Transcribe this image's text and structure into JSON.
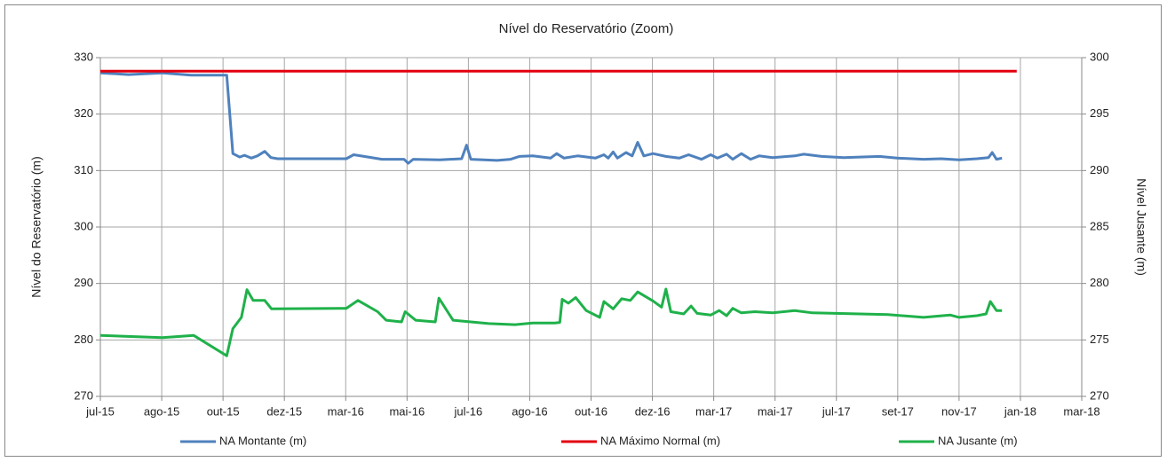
{
  "chart_data": {
    "type": "line",
    "title": "Nível do Reservatório (Zoom)",
    "y_label": "Nível do Reservatório (m)",
    "y2_label": "Nível Jusante (m)",
    "xlim": [
      0,
      16
    ],
    "xticks": [
      {
        "value": 0,
        "label": "jul-15"
      },
      {
        "value": 1,
        "label": "ago-15"
      },
      {
        "value": 2,
        "label": "out-15"
      },
      {
        "value": 3,
        "label": "dez-15"
      },
      {
        "value": 4,
        "label": "mar-16"
      },
      {
        "value": 5,
        "label": "mai-16"
      },
      {
        "value": 6,
        "label": "jul-16"
      },
      {
        "value": 7,
        "label": "ago-16"
      },
      {
        "value": 8,
        "label": "out-16"
      },
      {
        "value": 9,
        "label": "dez-16"
      },
      {
        "value": 10,
        "label": "mar-17"
      },
      {
        "value": 11,
        "label": "mai-17"
      },
      {
        "value": 12,
        "label": "jul-17"
      },
      {
        "value": 13,
        "label": "set-17"
      },
      {
        "value": 14,
        "label": "nov-17"
      },
      {
        "value": 15,
        "label": "jan-18"
      },
      {
        "value": 16,
        "label": "mar-18"
      }
    ],
    "ylim": [
      270,
      330
    ],
    "yticks": [
      270,
      280,
      290,
      300,
      310,
      320,
      330
    ],
    "y2lim": [
      270,
      300
    ],
    "y2ticks": [
      270,
      275,
      280,
      285,
      290,
      295,
      300
    ],
    "grid": true,
    "legend": "bottom",
    "series": [
      {
        "name": "NA Montante (m)",
        "color": "#4f81bd",
        "x": [
          0,
          0.46,
          1.01,
          1.48,
          2.06,
          2.16,
          2.27,
          2.35,
          2.46,
          2.56,
          2.68,
          2.78,
          2.89,
          4.01,
          4.13,
          4.3,
          4.59,
          4.95,
          5.02,
          5.1,
          5.53,
          5.89,
          5.97,
          6.04,
          6.47,
          6.69,
          6.83,
          7.05,
          7.34,
          7.44,
          7.56,
          7.78,
          8.07,
          8.21,
          8.28,
          8.36,
          8.43,
          8.57,
          8.67,
          8.76,
          8.86,
          9.01,
          9.22,
          9.44,
          9.59,
          9.8,
          9.95,
          10.06,
          10.21,
          10.31,
          10.45,
          10.6,
          10.74,
          10.96,
          11.32,
          11.47,
          11.76,
          12.12,
          12.7,
          12.99,
          13.42,
          13.71,
          14.0,
          14.29,
          14.48,
          14.54,
          14.61,
          14.7
        ],
        "values": [
          327.3,
          327.0,
          327.3,
          326.9,
          326.9,
          313.0,
          312.4,
          312.7,
          312.2,
          312.6,
          313.4,
          312.3,
          312.1,
          312.1,
          312.8,
          312.5,
          312.0,
          312.0,
          311.3,
          312.0,
          311.9,
          312.1,
          314.5,
          312.0,
          311.8,
          312.0,
          312.5,
          312.6,
          312.2,
          313.0,
          312.2,
          312.6,
          312.2,
          312.8,
          312.2,
          313.3,
          312.2,
          313.2,
          312.6,
          315.0,
          312.6,
          313.0,
          312.5,
          312.2,
          312.8,
          312.0,
          312.8,
          312.2,
          312.9,
          312.0,
          313.0,
          312.0,
          312.6,
          312.3,
          312.6,
          312.9,
          312.5,
          312.3,
          312.5,
          312.2,
          312.0,
          312.1,
          311.9,
          312.1,
          312.3,
          313.2,
          312.0,
          312.2
        ]
      },
      {
        "name": "NA Máximo Normal (m)",
        "color": "#e3000f",
        "x": [
          0,
          14.94
        ],
        "values": [
          327.6,
          327.6
        ]
      },
      {
        "name": "NA Jusante (m)",
        "color": "#1fb14a",
        "axis": "y2",
        "x": [
          0,
          1.01,
          1.52,
          2.06,
          2.16,
          2.3,
          2.39,
          2.49,
          2.68,
          2.79,
          4.01,
          4.2,
          4.52,
          4.66,
          4.91,
          4.97,
          5.14,
          5.46,
          5.52,
          5.75,
          6.33,
          6.76,
          7.05,
          7.41,
          7.49,
          7.53,
          7.63,
          7.75,
          7.92,
          8.14,
          8.21,
          8.36,
          8.5,
          8.64,
          8.76,
          9.01,
          9.15,
          9.22,
          9.3,
          9.51,
          9.63,
          9.73,
          9.95,
          10.09,
          10.21,
          10.31,
          10.45,
          10.67,
          10.96,
          11.32,
          11.61,
          12.84,
          13.42,
          13.86,
          14.0,
          14.29,
          14.44,
          14.51,
          14.61,
          14.7
        ],
        "values": [
          275.4,
          275.2,
          275.4,
          273.6,
          276.0,
          277.0,
          279.45,
          278.5,
          278.5,
          277.75,
          277.8,
          278.5,
          277.5,
          276.75,
          276.6,
          277.5,
          276.75,
          276.6,
          278.7,
          276.75,
          276.45,
          276.35,
          276.5,
          276.5,
          276.55,
          278.6,
          278.25,
          278.75,
          277.6,
          277.0,
          278.4,
          277.75,
          278.65,
          278.5,
          279.25,
          278.45,
          277.9,
          279.5,
          277.5,
          277.3,
          278.0,
          277.35,
          277.2,
          277.6,
          277.15,
          277.8,
          277.4,
          277.5,
          277.4,
          277.6,
          277.4,
          277.25,
          277.0,
          277.2,
          277.0,
          277.15,
          277.3,
          278.4,
          277.6,
          277.6
        ]
      }
    ]
  }
}
